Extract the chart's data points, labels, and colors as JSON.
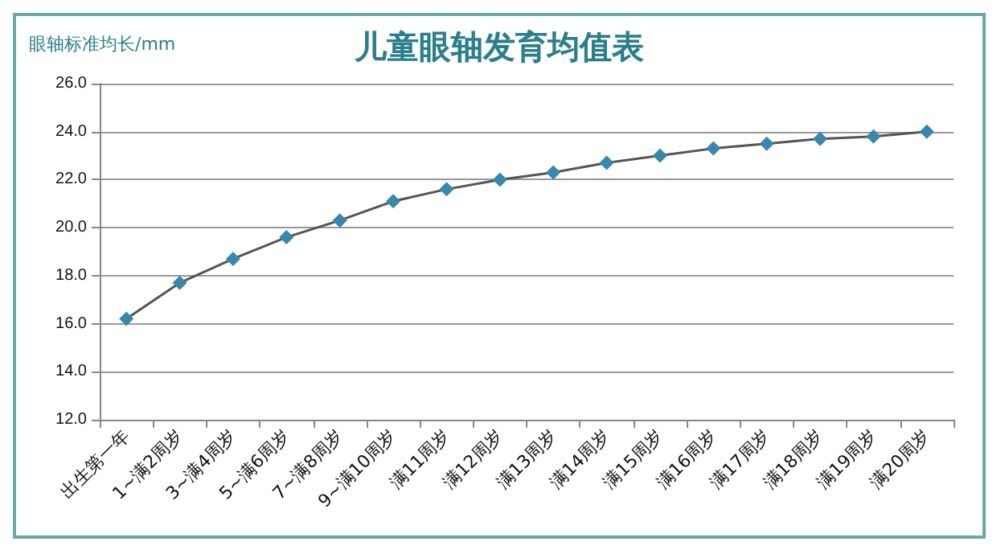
{
  "chart_data": {
    "type": "line",
    "title": "儿童眼轴发育均值表",
    "ylabel": "眼轴标准均长/mm",
    "categories": [
      "出生第一年",
      "1~满2周岁",
      "3~满4周岁",
      "5~满6周岁",
      "7~满8周岁",
      "9~满10周岁",
      "满11周岁",
      "满12周岁",
      "满13周岁",
      "满14周岁",
      "满15周岁",
      "满16周岁",
      "满17周岁",
      "满18周岁",
      "满19周岁",
      "满20周岁"
    ],
    "series": [
      {
        "color": "#3a87ad",
        "values": [
          16.2,
          17.7,
          18.7,
          19.6,
          20.3,
          21.1,
          21.6,
          22.0,
          22.3,
          22.7,
          23.0,
          23.3,
          23.5,
          23.7,
          23.8,
          24.0
        ]
      }
    ],
    "ylim": [
      12,
      26
    ],
    "yticks": [
      {
        "value": 12,
        "label": "12.0"
      },
      {
        "value": 14,
        "label": "14.0"
      },
      {
        "value": 16,
        "label": "16.0"
      },
      {
        "value": 18,
        "label": "18.0"
      },
      {
        "value": 20,
        "label": "20.0"
      },
      {
        "value": 22,
        "label": "22.0"
      },
      {
        "value": 24,
        "label": "24.0"
      },
      {
        "value": 26,
        "label": "26.0"
      }
    ],
    "grid": "y",
    "marker": "diamond",
    "line_style": "solid"
  }
}
